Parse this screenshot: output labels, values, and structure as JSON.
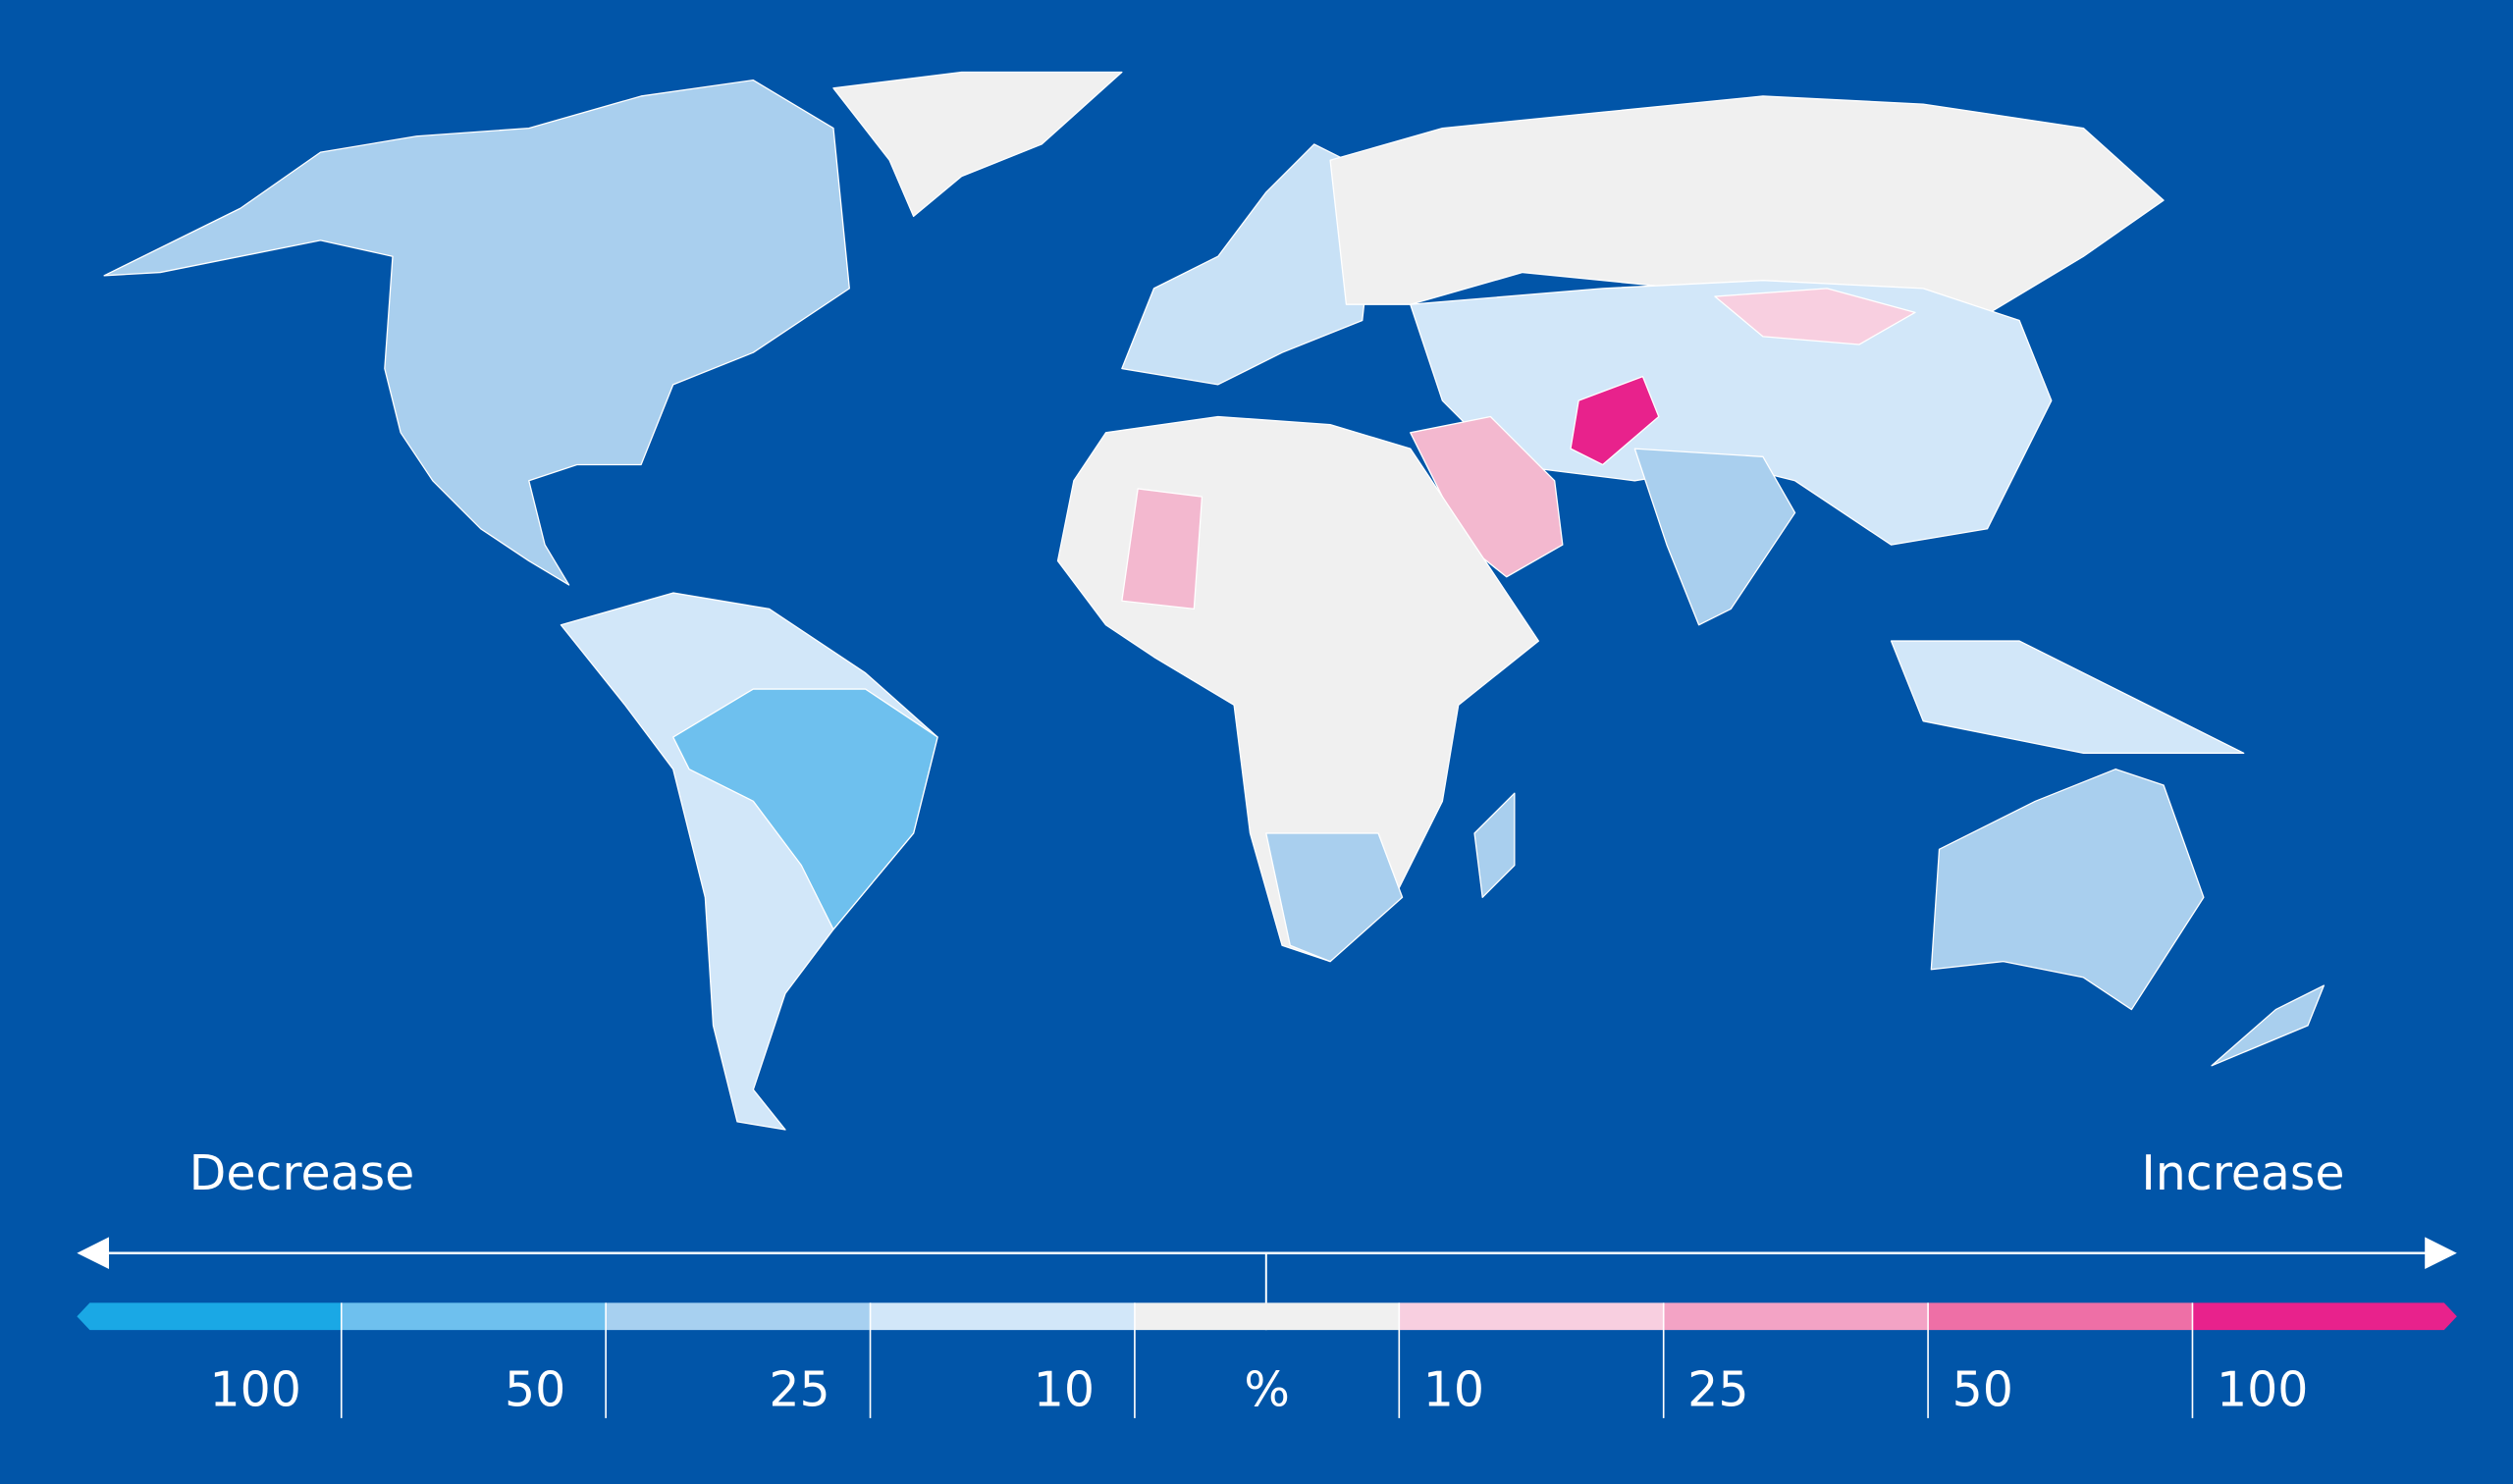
{
  "labels": {
    "decrease": "Decrease",
    "increase": "Increase"
  },
  "legend": {
    "bins": [
      {
        "color": "#1aa8e5"
      },
      {
        "color": "#6ec0ee"
      },
      {
        "color": "#a7d0f0"
      },
      {
        "color": "#d2e7f9"
      },
      {
        "color": "#f0f0f0"
      },
      {
        "color": "#f8cfe0"
      },
      {
        "color": "#f3a3c5"
      },
      {
        "color": "#ee6fa6"
      },
      {
        "color": "#e8228c"
      }
    ],
    "labels": [
      "100",
      "50",
      "25",
      "10",
      "%",
      "10",
      "25",
      "50",
      "100"
    ]
  }
}
